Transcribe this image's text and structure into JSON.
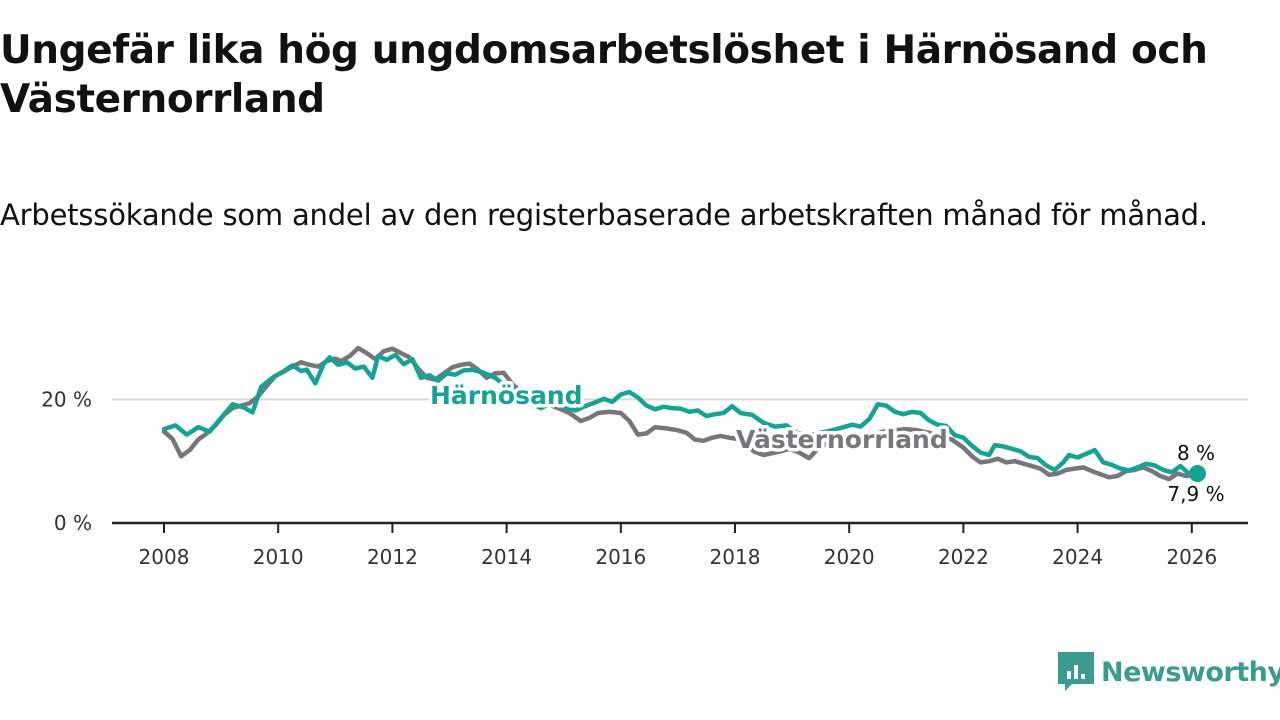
{
  "title": "Ungefär lika hög ungdomsarbetslöshet i Härnösand och Västernorrland",
  "subtitle": "Arbetssökande som andel av den registerbaserade arbetskraften månad för månad.",
  "brand": {
    "name": "Newsworthy",
    "color": "#3a9b8e",
    "icon": "newsworthy-logo-icon"
  },
  "colors": {
    "harnosand": "#16a394",
    "vasternorrland": "#77767b",
    "axis": "#222222",
    "grid": "#d9d9d9"
  },
  "chart_data": {
    "type": "line",
    "title": "Ungefär lika hög ungdomsarbetslöshet i Härnösand och Västernorrland",
    "subtitle": "Arbetssökande som andel av den registerbaserade arbetskraften månad för månad.",
    "xlabel": "",
    "ylabel": "",
    "xlim": [
      2007.9,
      2027.0
    ],
    "ylim": [
      0,
      30
    ],
    "x_ticks": [
      2008,
      2010,
      2012,
      2014,
      2016,
      2018,
      2020,
      2022,
      2024,
      2026
    ],
    "x_tick_labels": [
      "2008",
      "2010",
      "2012",
      "2014",
      "2016",
      "2018",
      "2020",
      "2022",
      "2024",
      "2026"
    ],
    "y_ticks": [
      0,
      20
    ],
    "y_tick_labels": [
      "0 %",
      "20 %"
    ],
    "grid": true,
    "series": [
      {
        "name": "Härnösand",
        "label": "Härnösand",
        "color_key": "harnosand",
        "end_label": "8 %",
        "points": [
          [
            2008.0,
            15.2
          ],
          [
            2008.2,
            15.8
          ],
          [
            2008.4,
            14.3
          ],
          [
            2008.6,
            15.5
          ],
          [
            2008.8,
            14.8
          ],
          [
            2009.0,
            17.0
          ],
          [
            2009.2,
            19.2
          ],
          [
            2009.4,
            18.7
          ],
          [
            2009.55,
            17.9
          ],
          [
            2009.7,
            22.0
          ],
          [
            2009.9,
            23.5
          ],
          [
            2010.1,
            24.6
          ],
          [
            2010.25,
            25.5
          ],
          [
            2010.4,
            24.6
          ],
          [
            2010.5,
            24.8
          ],
          [
            2010.65,
            22.6
          ],
          [
            2010.8,
            25.8
          ],
          [
            2010.9,
            26.8
          ],
          [
            2011.05,
            25.6
          ],
          [
            2011.2,
            26.0
          ],
          [
            2011.35,
            25.0
          ],
          [
            2011.5,
            25.3
          ],
          [
            2011.65,
            23.5
          ],
          [
            2011.75,
            27.0
          ],
          [
            2011.9,
            26.4
          ],
          [
            2012.05,
            27.2
          ],
          [
            2012.2,
            25.7
          ],
          [
            2012.35,
            26.5
          ],
          [
            2012.5,
            23.5
          ],
          [
            2012.65,
            23.9
          ],
          [
            2012.8,
            23.0
          ],
          [
            2012.95,
            24.2
          ],
          [
            2013.1,
            24.0
          ],
          [
            2013.25,
            24.7
          ],
          [
            2013.4,
            24.8
          ],
          [
            2013.6,
            24.3
          ],
          [
            2013.8,
            23.5
          ],
          [
            2014.0,
            22.0
          ],
          [
            2014.2,
            21.5
          ],
          [
            2014.4,
            19.5
          ],
          [
            2014.6,
            18.6
          ],
          [
            2014.8,
            19.5
          ],
          [
            2015.0,
            18.8
          ],
          [
            2015.2,
            18.2
          ],
          [
            2015.4,
            19.0
          ],
          [
            2015.55,
            19.5
          ],
          [
            2015.7,
            20.1
          ],
          [
            2015.85,
            19.6
          ],
          [
            2016.0,
            20.8
          ],
          [
            2016.15,
            21.2
          ],
          [
            2016.3,
            20.3
          ],
          [
            2016.45,
            19.0
          ],
          [
            2016.6,
            18.4
          ],
          [
            2016.75,
            18.8
          ],
          [
            2016.9,
            18.6
          ],
          [
            2017.05,
            18.5
          ],
          [
            2017.2,
            18.0
          ],
          [
            2017.35,
            18.2
          ],
          [
            2017.5,
            17.3
          ],
          [
            2017.65,
            17.6
          ],
          [
            2017.8,
            17.8
          ],
          [
            2017.95,
            18.9
          ],
          [
            2018.1,
            17.8
          ],
          [
            2018.3,
            17.5
          ],
          [
            2018.5,
            16.2
          ],
          [
            2018.7,
            15.6
          ],
          [
            2018.9,
            15.8
          ],
          [
            2019.1,
            14.5
          ],
          [
            2019.3,
            14.2
          ],
          [
            2019.5,
            14.6
          ],
          [
            2019.7,
            15.0
          ],
          [
            2019.9,
            15.5
          ],
          [
            2020.05,
            15.9
          ],
          [
            2020.2,
            15.6
          ],
          [
            2020.35,
            16.8
          ],
          [
            2020.5,
            19.2
          ],
          [
            2020.65,
            19.0
          ],
          [
            2020.8,
            18.0
          ],
          [
            2020.95,
            17.6
          ],
          [
            2021.1,
            18.0
          ],
          [
            2021.25,
            17.8
          ],
          [
            2021.4,
            16.6
          ],
          [
            2021.55,
            15.9
          ],
          [
            2021.7,
            15.7
          ],
          [
            2021.85,
            14.2
          ],
          [
            2022.0,
            13.8
          ],
          [
            2022.15,
            12.5
          ],
          [
            2022.3,
            11.4
          ],
          [
            2022.45,
            11.0
          ],
          [
            2022.55,
            12.6
          ],
          [
            2022.7,
            12.4
          ],
          [
            2022.85,
            12.0
          ],
          [
            2023.0,
            11.6
          ],
          [
            2023.15,
            10.7
          ],
          [
            2023.3,
            10.5
          ],
          [
            2023.45,
            9.3
          ],
          [
            2023.6,
            8.6
          ],
          [
            2023.75,
            9.8
          ],
          [
            2023.85,
            11.0
          ],
          [
            2024.0,
            10.6
          ],
          [
            2024.15,
            11.2
          ],
          [
            2024.3,
            11.8
          ],
          [
            2024.45,
            9.8
          ],
          [
            2024.6,
            9.4
          ],
          [
            2024.75,
            8.8
          ],
          [
            2024.9,
            8.5
          ],
          [
            2025.05,
            9.0
          ],
          [
            2025.2,
            9.6
          ],
          [
            2025.35,
            9.3
          ],
          [
            2025.5,
            8.6
          ],
          [
            2025.65,
            8.2
          ],
          [
            2025.8,
            9.2
          ],
          [
            2025.95,
            8.0
          ],
          [
            2026.1,
            8.0
          ]
        ]
      },
      {
        "name": "Västernorrland",
        "label": "Västernorrland",
        "color_key": "vasternorrland",
        "end_label": "7,9 %",
        "points": [
          [
            2008.0,
            14.8
          ],
          [
            2008.15,
            13.6
          ],
          [
            2008.3,
            10.8
          ],
          [
            2008.45,
            11.8
          ],
          [
            2008.6,
            13.5
          ],
          [
            2008.75,
            14.5
          ],
          [
            2008.9,
            15.8
          ],
          [
            2009.05,
            17.5
          ],
          [
            2009.2,
            18.6
          ],
          [
            2009.35,
            19.0
          ],
          [
            2009.5,
            19.4
          ],
          [
            2009.65,
            20.5
          ],
          [
            2009.8,
            22.2
          ],
          [
            2009.95,
            23.8
          ],
          [
            2010.1,
            24.5
          ],
          [
            2010.25,
            25.3
          ],
          [
            2010.4,
            26.0
          ],
          [
            2010.55,
            25.6
          ],
          [
            2010.7,
            25.3
          ],
          [
            2010.85,
            26.2
          ],
          [
            2011.0,
            26.6
          ],
          [
            2011.1,
            26.2
          ],
          [
            2011.25,
            27.0
          ],
          [
            2011.4,
            28.3
          ],
          [
            2011.55,
            27.5
          ],
          [
            2011.7,
            26.5
          ],
          [
            2011.85,
            27.8
          ],
          [
            2012.0,
            28.2
          ],
          [
            2012.15,
            27.5
          ],
          [
            2012.3,
            26.8
          ],
          [
            2012.45,
            25.0
          ],
          [
            2012.6,
            23.5
          ],
          [
            2012.75,
            23.2
          ],
          [
            2012.9,
            24.2
          ],
          [
            2013.05,
            25.2
          ],
          [
            2013.2,
            25.6
          ],
          [
            2013.35,
            25.8
          ],
          [
            2013.5,
            24.8
          ],
          [
            2013.65,
            23.5
          ],
          [
            2013.8,
            24.2
          ],
          [
            2013.95,
            24.3
          ],
          [
            2014.1,
            22.5
          ],
          [
            2014.3,
            20.8
          ],
          [
            2014.5,
            19.8
          ],
          [
            2014.7,
            19.3
          ],
          [
            2014.9,
            18.6
          ],
          [
            2015.1,
            17.8
          ],
          [
            2015.3,
            16.5
          ],
          [
            2015.45,
            17.0
          ],
          [
            2015.6,
            17.8
          ],
          [
            2015.8,
            18.0
          ],
          [
            2016.0,
            17.8
          ],
          [
            2016.15,
            16.5
          ],
          [
            2016.3,
            14.3
          ],
          [
            2016.45,
            14.5
          ],
          [
            2016.6,
            15.5
          ],
          [
            2016.8,
            15.3
          ],
          [
            2017.0,
            15.0
          ],
          [
            2017.15,
            14.6
          ],
          [
            2017.3,
            13.5
          ],
          [
            2017.45,
            13.3
          ],
          [
            2017.6,
            13.8
          ],
          [
            2017.75,
            14.1
          ],
          [
            2017.9,
            13.8
          ],
          [
            2018.05,
            13.6
          ],
          [
            2018.2,
            12.5
          ],
          [
            2018.35,
            11.5
          ],
          [
            2018.5,
            11.0
          ],
          [
            2018.65,
            11.3
          ],
          [
            2018.8,
            11.6
          ],
          [
            2018.95,
            12.0
          ],
          [
            2019.1,
            11.5
          ],
          [
            2019.3,
            10.5
          ],
          [
            2019.45,
            12.0
          ],
          [
            2019.6,
            12.8
          ],
          [
            2019.8,
            13.2
          ],
          [
            2020.0,
            13.6
          ],
          [
            2020.2,
            13.8
          ],
          [
            2020.4,
            14.2
          ],
          [
            2020.6,
            14.8
          ],
          [
            2020.8,
            15.0
          ],
          [
            2021.0,
            15.2
          ],
          [
            2021.2,
            15.0
          ],
          [
            2021.4,
            14.6
          ],
          [
            2021.6,
            14.0
          ],
          [
            2021.8,
            13.5
          ],
          [
            2022.0,
            12.2
          ],
          [
            2022.15,
            10.8
          ],
          [
            2022.3,
            9.8
          ],
          [
            2022.45,
            10.0
          ],
          [
            2022.6,
            10.4
          ],
          [
            2022.75,
            9.8
          ],
          [
            2022.9,
            10.0
          ],
          [
            2023.05,
            9.6
          ],
          [
            2023.2,
            9.2
          ],
          [
            2023.35,
            8.8
          ],
          [
            2023.5,
            7.8
          ],
          [
            2023.65,
            8.0
          ],
          [
            2023.8,
            8.6
          ],
          [
            2023.95,
            8.8
          ],
          [
            2024.1,
            9.0
          ],
          [
            2024.25,
            8.4
          ],
          [
            2024.4,
            7.9
          ],
          [
            2024.55,
            7.4
          ],
          [
            2024.7,
            7.6
          ],
          [
            2024.85,
            8.4
          ],
          [
            2025.0,
            8.6
          ],
          [
            2025.15,
            9.0
          ],
          [
            2025.3,
            8.4
          ],
          [
            2025.45,
            7.6
          ],
          [
            2025.6,
            7.1
          ],
          [
            2025.75,
            8.0
          ],
          [
            2025.9,
            7.6
          ],
          [
            2026.1,
            7.9
          ]
        ]
      }
    ]
  }
}
